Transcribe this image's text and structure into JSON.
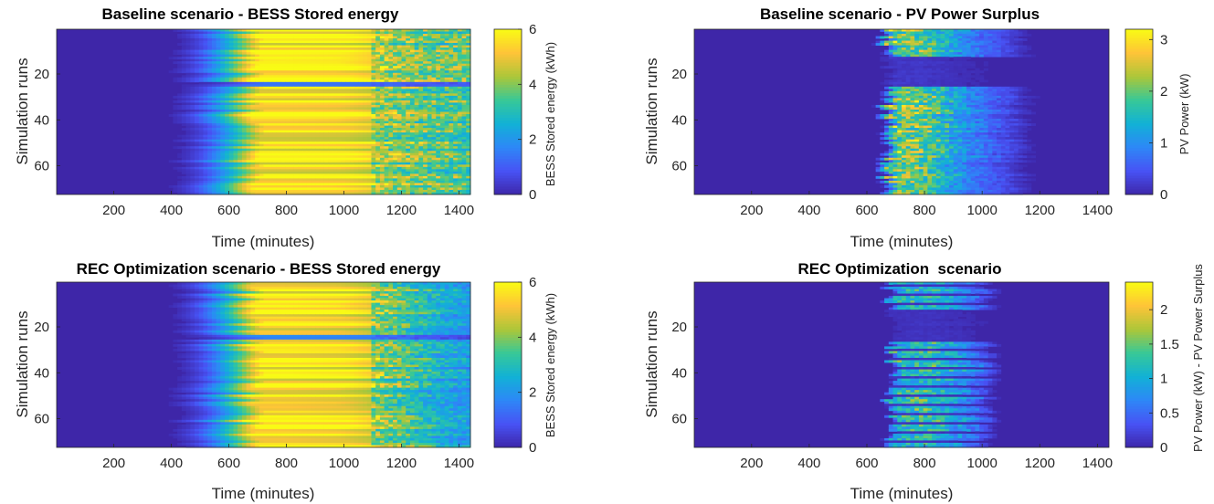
{
  "chart_data": [
    {
      "type": "heatmap",
      "title": "Baseline scenario - BESS Stored energy",
      "xlabel": "Time (minutes)",
      "ylabel": "Simulation runs",
      "xlim": [
        1,
        1440
      ],
      "ylim": [
        1,
        72
      ],
      "xticks": [
        200,
        400,
        600,
        800,
        1000,
        1200,
        1400
      ],
      "yticks": [
        20,
        40,
        60
      ],
      "colorbar": {
        "label": "BESS Stored energy (kWh)",
        "range": [
          0,
          6
        ],
        "ticks": [
          "0",
          "2",
          "4",
          "6"
        ],
        "colormap": "parula"
      },
      "pattern": "bess",
      "profile": {
        "x": [
          0,
          400,
          450,
          500,
          550,
          600,
          650,
          700,
          800,
          1000,
          1100,
          1200,
          1300,
          1440
        ],
        "values": [
          0,
          0,
          0.3,
          0.8,
          1.8,
          3.0,
          4.5,
          6.0,
          6.0,
          5.9,
          5.5,
          5.0,
          4.6,
          4.3
        ]
      }
    },
    {
      "type": "heatmap",
      "title": "Baseline scenario - PV Power Surplus",
      "xlabel": "Time (minutes)",
      "ylabel": "Simulation runs",
      "xlim": [
        1,
        1440
      ],
      "ylim": [
        1,
        72
      ],
      "xticks": [
        200,
        400,
        600,
        800,
        1000,
        1200,
        1400
      ],
      "yticks": [
        20,
        40,
        60
      ],
      "colorbar": {
        "label": "PV Power (kW)",
        "range": [
          0,
          3.2
        ],
        "ticks": [
          "0",
          "1",
          "2",
          "3"
        ],
        "colormap": "parula"
      },
      "pattern": "pv",
      "profile": {
        "x": [
          0,
          650,
          680,
          700,
          800,
          900,
          1000,
          1100,
          1150,
          1200,
          1440
        ],
        "values": [
          0,
          0,
          1.8,
          2.8,
          2.6,
          1.6,
          0.9,
          0.4,
          0.1,
          0,
          0
        ]
      }
    },
    {
      "type": "heatmap",
      "title": "REC Optimization scenario - BESS Stored energy",
      "xlabel": "Time (minutes)",
      "ylabel": "Simulation runs",
      "xlim": [
        1,
        1440
      ],
      "ylim": [
        1,
        72
      ],
      "xticks": [
        200,
        400,
        600,
        800,
        1000,
        1200,
        1400
      ],
      "yticks": [
        20,
        40,
        60
      ],
      "colorbar": {
        "label": "BESS Stored energy (kWh)",
        "range": [
          0,
          6
        ],
        "ticks": [
          "0",
          "2",
          "4",
          "6"
        ],
        "colormap": "parula"
      },
      "pattern": "bess",
      "profile": {
        "x": [
          0,
          400,
          450,
          500,
          550,
          600,
          650,
          700,
          800,
          1000,
          1100,
          1200,
          1300,
          1440
        ],
        "values": [
          0,
          0,
          0.3,
          0.8,
          1.8,
          3.0,
          4.5,
          6.0,
          6.0,
          5.8,
          5.3,
          4.4,
          3.4,
          2.6
        ]
      }
    },
    {
      "type": "heatmap",
      "title": "REC Optimization  scenario",
      "xlabel": "Time (minutes)",
      "ylabel": "Simulation runs",
      "xlim": [
        1,
        1440
      ],
      "ylim": [
        1,
        72
      ],
      "xticks": [
        200,
        400,
        600,
        800,
        1000,
        1200,
        1400
      ],
      "yticks": [
        20,
        40,
        60
      ],
      "colorbar": {
        "label": "PV Power (kW) - PV Power Surplus",
        "range": [
          0,
          2.4
        ],
        "ticks": [
          "0",
          "0.5",
          "1",
          "1.5",
          "2"
        ],
        "colormap": "parula"
      },
      "pattern": "pv-rec",
      "profile": {
        "x": [
          0,
          670,
          690,
          720,
          800,
          900,
          980,
          1050,
          1440
        ],
        "values": [
          0,
          0,
          1.2,
          1.5,
          1.6,
          1.2,
          0.7,
          0,
          0
        ]
      }
    }
  ]
}
